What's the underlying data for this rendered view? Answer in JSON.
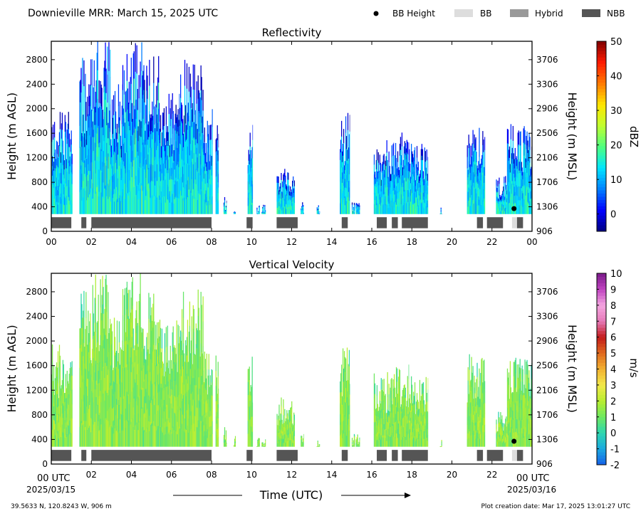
{
  "figure": {
    "title": "Downieville MRR:  March 15, 2025 UTC",
    "legend": [
      {
        "label": "BB Height",
        "kind": "dot",
        "color": "#000000"
      },
      {
        "label": "BB",
        "kind": "bar",
        "color": "#dddddd"
      },
      {
        "label": "Hybrid",
        "kind": "bar",
        "color": "#999999"
      },
      {
        "label": "NBB",
        "kind": "bar",
        "color": "#555555"
      }
    ],
    "x_axis_label": "Time (UTC)",
    "x_start_label": [
      "00 UTC",
      "2025/03/15"
    ],
    "x_end_label": [
      "00 UTC",
      "2025/03/16"
    ],
    "footer_left": "39.5633 N, 120.8243 W, 906 m",
    "footer_right": "Plot creation date: Mar 17, 2025 13:01:27 UTC"
  },
  "chart_data": [
    {
      "type": "heatmap",
      "title": "Reflectivity",
      "xlabel": "Time (UTC)",
      "ylabel": "Height (m AGL)",
      "ylabel_right": "Height (m MSL)",
      "xlim": [
        0,
        24
      ],
      "ylim": [
        0,
        3100
      ],
      "x_ticks": [
        "00",
        "02",
        "04",
        "06",
        "08",
        "10",
        "12",
        "14",
        "16",
        "18",
        "20",
        "22",
        "00"
      ],
      "y_ticks": [
        0,
        400,
        800,
        1200,
        1600,
        2000,
        2400,
        2800
      ],
      "y_ticks_right": [
        906,
        1306,
        1706,
        2106,
        2506,
        2906,
        3306,
        3706
      ],
      "colorbar": {
        "label": "dBZ",
        "min": -5,
        "max": 50,
        "ticks": [
          0,
          10,
          20,
          30,
          40,
          50
        ],
        "colors": [
          "#00007f",
          "#0000ff",
          "#0080ff",
          "#00e5ff",
          "#4dff80",
          "#c0ff30",
          "#ffe600",
          "#ff7a00",
          "#ff1a00",
          "#7f0000"
        ]
      },
      "echo_segments": [
        {
          "start": 0.0,
          "end": 1.05,
          "top": 1950
        },
        {
          "start": 1.4,
          "end": 2.05,
          "top": 2900
        },
        {
          "start": 2.05,
          "end": 2.95,
          "top": 3100
        },
        {
          "start": 2.95,
          "end": 3.55,
          "top": 2400
        },
        {
          "start": 3.55,
          "end": 4.6,
          "top": 3100
        },
        {
          "start": 4.6,
          "end": 5.4,
          "top": 2900
        },
        {
          "start": 5.4,
          "end": 6.4,
          "top": 2350
        },
        {
          "start": 6.4,
          "end": 7.6,
          "top": 2850
        },
        {
          "start": 7.6,
          "end": 8.05,
          "top": 2050
        },
        {
          "start": 8.2,
          "end": 8.35,
          "top": 1900
        },
        {
          "start": 8.6,
          "end": 8.75,
          "top": 600
        },
        {
          "start": 9.1,
          "end": 9.2,
          "top": 550
        },
        {
          "start": 9.8,
          "end": 10.05,
          "top": 1750
        },
        {
          "start": 10.25,
          "end": 10.4,
          "top": 450
        },
        {
          "start": 10.5,
          "end": 10.7,
          "top": 500
        },
        {
          "start": 11.25,
          "end": 12.15,
          "top": 1100
        },
        {
          "start": 12.45,
          "end": 12.6,
          "top": 500
        },
        {
          "start": 13.25,
          "end": 13.4,
          "top": 450
        },
        {
          "start": 14.4,
          "end": 14.9,
          "top": 1950
        },
        {
          "start": 15.0,
          "end": 15.15,
          "top": 500
        },
        {
          "start": 15.2,
          "end": 15.4,
          "top": 550
        },
        {
          "start": 16.1,
          "end": 17.1,
          "top": 1500
        },
        {
          "start": 17.1,
          "end": 17.85,
          "top": 1650
        },
        {
          "start": 17.85,
          "end": 18.8,
          "top": 1450
        },
        {
          "start": 19.4,
          "end": 19.5,
          "top": 400
        },
        {
          "start": 20.75,
          "end": 21.65,
          "top": 1800
        },
        {
          "start": 22.2,
          "end": 22.75,
          "top": 950
        },
        {
          "start": 22.75,
          "end": 24.0,
          "top": 1750
        }
      ],
      "bright_band": [
        {
          "start": 0.0,
          "end": 1.0,
          "type": "NBB"
        },
        {
          "start": 1.5,
          "end": 1.75,
          "type": "NBB"
        },
        {
          "start": 2.0,
          "end": 8.0,
          "type": "NBB"
        },
        {
          "start": 9.75,
          "end": 10.05,
          "type": "NBB"
        },
        {
          "start": 11.25,
          "end": 12.3,
          "type": "NBB"
        },
        {
          "start": 14.5,
          "end": 14.8,
          "type": "NBB"
        },
        {
          "start": 16.25,
          "end": 16.75,
          "type": "NBB"
        },
        {
          "start": 17.0,
          "end": 17.3,
          "type": "NBB"
        },
        {
          "start": 17.5,
          "end": 18.8,
          "type": "NBB"
        },
        {
          "start": 21.25,
          "end": 21.55,
          "type": "NBB"
        },
        {
          "start": 21.75,
          "end": 22.55,
          "type": "NBB"
        },
        {
          "start": 23.0,
          "end": 23.25,
          "type": "BB"
        },
        {
          "start": 23.25,
          "end": 23.55,
          "type": "NBB"
        }
      ],
      "bb_height_points": [
        {
          "x": 23.1,
          "y": 370
        }
      ]
    },
    {
      "type": "heatmap",
      "title": "Vertical Velocity",
      "xlabel": "Time (UTC)",
      "ylabel": "Height (m AGL)",
      "ylabel_right": "Height (m MSL)",
      "xlim": [
        0,
        24
      ],
      "ylim": [
        0,
        3100
      ],
      "x_ticks": [
        "",
        "02",
        "04",
        "06",
        "08",
        "10",
        "12",
        "14",
        "16",
        "18",
        "20",
        "22",
        ""
      ],
      "y_ticks": [
        0,
        400,
        800,
        1200,
        1600,
        2000,
        2400,
        2800
      ],
      "y_ticks_right": [
        906,
        1306,
        1706,
        2106,
        2506,
        2906,
        3306,
        3706
      ],
      "colorbar": {
        "label": "m/s",
        "min": -2,
        "max": 10,
        "ticks": [
          -2,
          -1,
          0,
          1,
          2,
          3,
          4,
          5,
          6,
          7,
          8,
          9,
          10
        ],
        "colors": [
          "#1560e8",
          "#1aa8e0",
          "#2ed6b0",
          "#6ee860",
          "#b8ee30",
          "#f2e84a",
          "#f2b232",
          "#e06a1e",
          "#c21a1a",
          "#e57ab8",
          "#f4a6e0",
          "#c044c0",
          "#7a1a8a"
        ]
      },
      "echo_segments": [
        {
          "start": 0.0,
          "end": 1.05,
          "top": 1950
        },
        {
          "start": 1.4,
          "end": 2.05,
          "top": 2900
        },
        {
          "start": 2.05,
          "end": 2.95,
          "top": 3100
        },
        {
          "start": 2.95,
          "end": 3.55,
          "top": 2400
        },
        {
          "start": 3.55,
          "end": 4.6,
          "top": 3100
        },
        {
          "start": 4.6,
          "end": 5.4,
          "top": 2900
        },
        {
          "start": 5.4,
          "end": 6.4,
          "top": 2350
        },
        {
          "start": 6.4,
          "end": 7.6,
          "top": 2850
        },
        {
          "start": 7.6,
          "end": 8.05,
          "top": 2050
        },
        {
          "start": 8.2,
          "end": 8.35,
          "top": 1900
        },
        {
          "start": 8.6,
          "end": 8.75,
          "top": 600
        },
        {
          "start": 9.1,
          "end": 9.2,
          "top": 550
        },
        {
          "start": 9.8,
          "end": 10.05,
          "top": 1750
        },
        {
          "start": 10.25,
          "end": 10.4,
          "top": 450
        },
        {
          "start": 10.5,
          "end": 10.7,
          "top": 500
        },
        {
          "start": 11.25,
          "end": 12.15,
          "top": 1100
        },
        {
          "start": 12.45,
          "end": 12.6,
          "top": 500
        },
        {
          "start": 13.25,
          "end": 13.4,
          "top": 450
        },
        {
          "start": 14.4,
          "end": 14.9,
          "top": 1950
        },
        {
          "start": 15.0,
          "end": 15.15,
          "top": 500
        },
        {
          "start": 15.2,
          "end": 15.4,
          "top": 550
        },
        {
          "start": 16.1,
          "end": 17.1,
          "top": 1500
        },
        {
          "start": 17.1,
          "end": 17.85,
          "top": 1650
        },
        {
          "start": 17.85,
          "end": 18.8,
          "top": 1450
        },
        {
          "start": 19.4,
          "end": 19.5,
          "top": 400
        },
        {
          "start": 20.75,
          "end": 21.65,
          "top": 1800
        },
        {
          "start": 22.2,
          "end": 22.75,
          "top": 950
        },
        {
          "start": 22.75,
          "end": 24.0,
          "top": 1750
        }
      ],
      "bright_band": [
        {
          "start": 0.0,
          "end": 1.0,
          "type": "NBB"
        },
        {
          "start": 1.5,
          "end": 1.75,
          "type": "NBB"
        },
        {
          "start": 2.0,
          "end": 8.0,
          "type": "NBB"
        },
        {
          "start": 9.75,
          "end": 10.05,
          "type": "NBB"
        },
        {
          "start": 11.25,
          "end": 12.3,
          "type": "NBB"
        },
        {
          "start": 14.5,
          "end": 14.8,
          "type": "NBB"
        },
        {
          "start": 16.25,
          "end": 16.75,
          "type": "NBB"
        },
        {
          "start": 17.0,
          "end": 17.3,
          "type": "NBB"
        },
        {
          "start": 17.5,
          "end": 18.8,
          "type": "NBB"
        },
        {
          "start": 21.25,
          "end": 21.55,
          "type": "NBB"
        },
        {
          "start": 21.75,
          "end": 22.55,
          "type": "NBB"
        },
        {
          "start": 23.0,
          "end": 23.25,
          "type": "BB"
        },
        {
          "start": 23.25,
          "end": 23.55,
          "type": "NBB"
        }
      ],
      "bb_height_points": [
        {
          "x": 23.1,
          "y": 370
        }
      ]
    }
  ]
}
